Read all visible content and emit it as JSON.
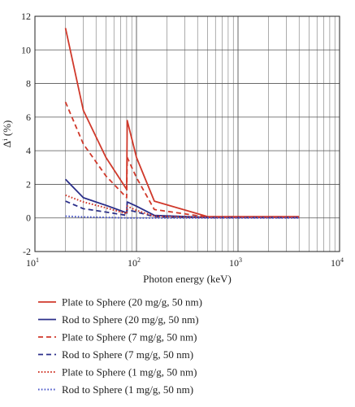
{
  "chart_data": {
    "type": "line",
    "title": "",
    "xlabel": "Photon energy (keV)",
    "ylabel": "Δⁱ (%)",
    "x_scale": "log",
    "xlim": [
      10,
      10000
    ],
    "ylim": [
      -2,
      12
    ],
    "x_ticks": [
      {
        "value": 10,
        "base": "10",
        "exp": "1"
      },
      {
        "value": 100,
        "base": "10",
        "exp": "2"
      },
      {
        "value": 1000,
        "base": "10",
        "exp": "3"
      },
      {
        "value": 10000,
        "base": "10",
        "exp": "4"
      }
    ],
    "y_ticks": [
      -2,
      0,
      2,
      4,
      6,
      8,
      10,
      12
    ],
    "y_tick_labels": [
      "-2",
      "0",
      "2",
      "4",
      "6",
      "8",
      "10",
      "12"
    ],
    "grid": true,
    "legend_position": "below",
    "series": [
      {
        "name": "Plate to Sphere (20 mg/g, 50 nm)",
        "color": "#d0392b",
        "style": "solid",
        "points": [
          [
            20,
            11.3
          ],
          [
            30,
            6.4
          ],
          [
            50,
            3.6
          ],
          [
            80,
            1.7
          ],
          [
            81,
            5.8
          ],
          [
            100,
            3.6
          ],
          [
            150,
            1.0
          ],
          [
            500,
            0.08
          ],
          [
            4000,
            0.08
          ]
        ]
      },
      {
        "name": "Rod to Sphere (20 mg/g, 50 nm)",
        "color": "#2b2f8a",
        "style": "solid",
        "points": [
          [
            20,
            2.3
          ],
          [
            30,
            1.2
          ],
          [
            50,
            0.75
          ],
          [
            80,
            0.3
          ],
          [
            81,
            0.95
          ],
          [
            100,
            0.7
          ],
          [
            150,
            0.15
          ],
          [
            500,
            0.03
          ],
          [
            4000,
            0.03
          ]
        ]
      },
      {
        "name": "Plate to Sphere (7 mg/g, 50 nm)",
        "color": "#d0392b",
        "style": "dashed",
        "points": [
          [
            20,
            6.9
          ],
          [
            30,
            4.4
          ],
          [
            50,
            2.5
          ],
          [
            80,
            1.2
          ],
          [
            81,
            3.6
          ],
          [
            100,
            2.4
          ],
          [
            150,
            0.5
          ],
          [
            500,
            0.05
          ],
          [
            4000,
            0.05
          ]
        ]
      },
      {
        "name": "Rod to Sphere (7 mg/g, 50 nm)",
        "color": "#2b2f8a",
        "style": "dashed",
        "points": [
          [
            20,
            1.0
          ],
          [
            30,
            0.55
          ],
          [
            50,
            0.35
          ],
          [
            80,
            0.15
          ],
          [
            81,
            0.5
          ],
          [
            100,
            0.35
          ],
          [
            150,
            0.08
          ],
          [
            500,
            0.02
          ],
          [
            4000,
            0.02
          ]
        ]
      },
      {
        "name": "Plate to Sphere (1 mg/g, 50 nm)",
        "color": "#d0392b",
        "style": "dotted",
        "points": [
          [
            20,
            1.35
          ],
          [
            30,
            0.95
          ],
          [
            50,
            0.6
          ],
          [
            80,
            0.25
          ],
          [
            81,
            0.7
          ],
          [
            100,
            0.45
          ],
          [
            150,
            0.1
          ],
          [
            500,
            0.02
          ],
          [
            4000,
            0.02
          ]
        ]
      },
      {
        "name": "Rod to Sphere (1 mg/g, 50 nm)",
        "color": "#4a57c9",
        "style": "dotted",
        "points": [
          [
            20,
            0.1
          ],
          [
            30,
            0.06
          ],
          [
            50,
            0.03
          ],
          [
            80,
            0.0
          ],
          [
            100,
            0.0
          ],
          [
            150,
            0.0
          ],
          [
            500,
            0.0
          ],
          [
            4000,
            0.0
          ]
        ]
      }
    ]
  }
}
